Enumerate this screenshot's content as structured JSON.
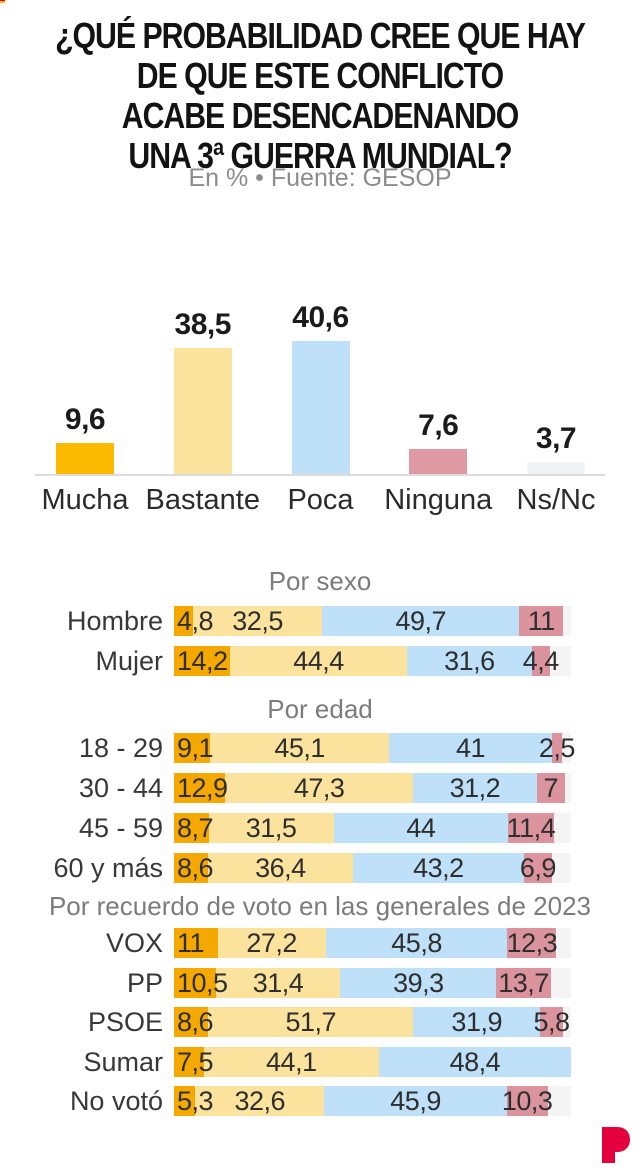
{
  "header": {
    "title_lines": [
      "¿QUÉ PROBABILIDAD CREE QUE HAY",
      "DE QUE ESTE CONFLICTO",
      "ACABE DESENCADENANDO",
      "UNA 3ª GUERRA MUNDIAL?"
    ],
    "subtitle": "En % • Fuente: GESOP"
  },
  "chart_data": [
    {
      "type": "bar",
      "title": "",
      "xlabel": "",
      "ylabel": "",
      "ylim": [
        0,
        45
      ],
      "grid": false,
      "categories": [
        "Mucha",
        "Bastante",
        "Poca",
        "Ninguna",
        "Ns/Nc"
      ],
      "values": [
        9.6,
        38.5,
        40.6,
        7.6,
        3.7
      ],
      "value_labels": [
        "9,6",
        "38,5",
        "40,6",
        "7,6",
        "3,7"
      ],
      "colors": [
        "#FCBA00",
        "#FBE39E",
        "#BEE0F8",
        "#DE99A2",
        "#F2F3F5"
      ]
    },
    {
      "type": "stacked-bar-horizontal",
      "xlim": [
        0,
        100
      ],
      "answer_order": [
        "Mucha",
        "Bastante",
        "Poca",
        "Ninguna",
        "Ns/Nc"
      ],
      "segment_colors": [
        "#F5A800",
        "#FBE39E",
        "#BEE0F8",
        "#DB939D",
        "#F4F4F4"
      ],
      "sections": [
        {
          "header": "Por sexo",
          "rows": [
            {
              "label": "Hombre",
              "segments": [
                {
                  "text": "4,8",
                  "value": 4.8
                },
                {
                  "text": "32,5",
                  "value": 32.5
                },
                {
                  "text": "49,7",
                  "value": 49.7
                },
                {
                  "text": "11",
                  "value": 11
                }
              ]
            },
            {
              "label": "Mujer",
              "segments": [
                {
                  "text": "14,2",
                  "value": 14.2
                },
                {
                  "text": "44,4",
                  "value": 44.4
                },
                {
                  "text": "31,6",
                  "value": 31.6
                },
                {
                  "text": "4,4",
                  "value": 4.4
                }
              ]
            }
          ]
        },
        {
          "header": "Por edad",
          "rows": [
            {
              "label": "18 - 29",
              "segments": [
                {
                  "text": "9,1",
                  "value": 9.1
                },
                {
                  "text": "45,1",
                  "value": 45.1
                },
                {
                  "text": "41",
                  "value": 41
                },
                {
                  "text": "2,5",
                  "value": 2.5
                }
              ]
            },
            {
              "label": "30 - 44",
              "segments": [
                {
                  "text": "12,9",
                  "value": 12.9
                },
                {
                  "text": "47,3",
                  "value": 47.3
                },
                {
                  "text": "31,2",
                  "value": 31.2
                },
                {
                  "text": "7",
                  "value": 7
                }
              ]
            },
            {
              "label": "45 - 59",
              "segments": [
                {
                  "text": "8,7",
                  "value": 8.7
                },
                {
                  "text": "31,5",
                  "value": 31.5
                },
                {
                  "text": "44",
                  "value": 44
                },
                {
                  "text": "11,4",
                  "value": 11.4
                }
              ]
            },
            {
              "label": "60 y más",
              "segments": [
                {
                  "text": "8,6",
                  "value": 8.6
                },
                {
                  "text": "36,4",
                  "value": 36.4
                },
                {
                  "text": "43,2",
                  "value": 43.2
                },
                {
                  "text": "6,9",
                  "value": 6.9
                }
              ]
            }
          ]
        },
        {
          "header": "Por recuerdo de voto en las generales de 2023",
          "rows": [
            {
              "label": "VOX",
              "segments": [
                {
                  "text": "11",
                  "value": 11
                },
                {
                  "text": "27,2",
                  "value": 27.2
                },
                {
                  "text": "45,8",
                  "value": 45.8
                },
                {
                  "text": "12,3",
                  "value": 12.3
                }
              ]
            },
            {
              "label": "PP",
              "segments": [
                {
                  "text": "10,5",
                  "value": 10.5
                },
                {
                  "text": "31,4",
                  "value": 31.4
                },
                {
                  "text": "39,3",
                  "value": 39.3
                },
                {
                  "text": "13,7",
                  "value": 13.7
                }
              ]
            },
            {
              "label": "PSOE",
              "segments": [
                {
                  "text": "8,6",
                  "value": 8.6
                },
                {
                  "text": "51,7",
                  "value": 51.7
                },
                {
                  "text": "31,9",
                  "value": 31.9
                },
                {
                  "text": "5,8",
                  "value": 5.8
                }
              ]
            },
            {
              "label": "Sumar",
              "segments": [
                {
                  "text": "7,5",
                  "value": 7.5
                },
                {
                  "text": "44,1",
                  "value": 44.1
                },
                {
                  "text": "48,4",
                  "value": 48.4
                }
              ]
            },
            {
              "label": "No votó",
              "segments": [
                {
                  "text": "5,3",
                  "value": 5.3
                },
                {
                  "text": "32,6",
                  "value": 32.6
                },
                {
                  "text": "45,9",
                  "value": 45.9
                },
                {
                  "text": "10,3",
                  "value": 10.3
                }
              ]
            }
          ]
        }
      ]
    }
  ],
  "footer": {
    "brand_letter": "P",
    "brand_color": "#E4003C"
  }
}
